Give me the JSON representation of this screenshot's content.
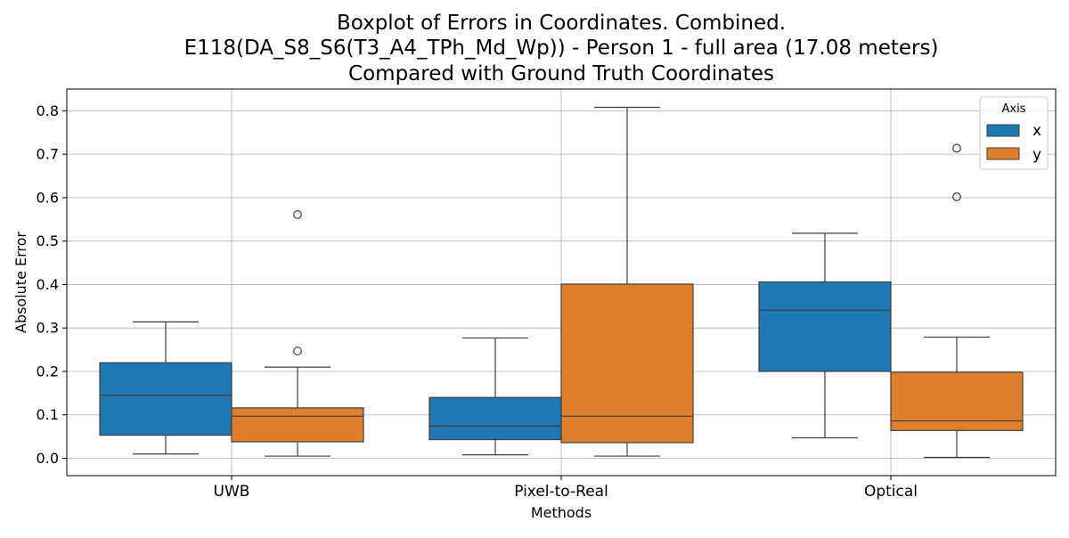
{
  "chart_data": {
    "type": "box",
    "title_lines": [
      "Boxplot of Errors in Coordinates. Combined.",
      "E118(DA_S8_S6(T3_A4_TPh_Md_Wp)) - Person 1 - full area (17.08 meters)",
      "Compared with Ground Truth Coordinates"
    ],
    "xlabel": "Methods",
    "ylabel": "Absolute Error",
    "ylim": [
      -0.04,
      0.85
    ],
    "yticks": [
      0.0,
      0.1,
      0.2,
      0.3,
      0.4,
      0.5,
      0.6,
      0.7,
      0.8
    ],
    "grid": true,
    "categories": [
      "UWB",
      "Pixel-to-Real",
      "Optical"
    ],
    "legend": {
      "title": "Axis",
      "position": "top-right"
    },
    "series": [
      {
        "name": "x",
        "color": "#1f77b4",
        "boxes": [
          {
            "whisker_low": 0.01,
            "q1": 0.053,
            "median": 0.145,
            "q3": 0.22,
            "whisker_high": 0.314,
            "outliers": []
          },
          {
            "whisker_low": 0.008,
            "q1": 0.043,
            "median": 0.074,
            "q3": 0.14,
            "whisker_high": 0.277,
            "outliers": []
          },
          {
            "whisker_low": 0.047,
            "q1": 0.2,
            "median": 0.341,
            "q3": 0.406,
            "whisker_high": 0.518,
            "outliers": []
          }
        ]
      },
      {
        "name": "y",
        "color": "#e07f2b",
        "boxes": [
          {
            "whisker_low": 0.005,
            "q1": 0.038,
            "median": 0.097,
            "q3": 0.116,
            "whisker_high": 0.21,
            "outliers": [
              0.247,
              0.561
            ]
          },
          {
            "whisker_low": 0.005,
            "q1": 0.036,
            "median": 0.097,
            "q3": 0.401,
            "whisker_high": 0.808,
            "outliers": []
          },
          {
            "whisker_low": 0.002,
            "q1": 0.064,
            "median": 0.086,
            "q3": 0.198,
            "whisker_high": 0.279,
            "outliers": [
              0.602,
              0.714
            ]
          }
        ]
      }
    ]
  }
}
